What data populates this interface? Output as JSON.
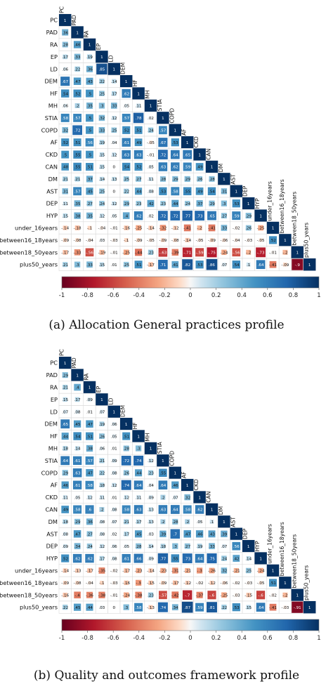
{
  "labels": [
    "PC",
    "PAD",
    "RA",
    "EP",
    "LD",
    "DEM",
    "HF",
    "MH",
    "STIA",
    "COPD",
    "AF",
    "CKD",
    "CAN",
    "DM",
    "AST",
    "DEP",
    "HYP",
    "under_16years",
    "between16_18years",
    "between18_50years",
    "plus50_years"
  ],
  "colorbar_ticks": [
    "-1",
    "-0.8",
    "-0.6",
    "-0.4",
    "-0.2",
    "0",
    "0.2",
    "0.4",
    "0.6",
    "0.8",
    "1"
  ],
  "captions": {
    "a": "(a) Allocation General practices profile",
    "b": "(b) Quality and outcomes framework profile"
  },
  "colors": {
    "negative": "#67001f",
    "neutral": "#f7f7f7",
    "positive": "#053061",
    "grid": "#d9d9d9"
  },
  "chart_data": [
    {
      "type": "heatmap",
      "title": "",
      "values": [
        [
          0.36
        ],
        [
          0.28,
          0.46
        ],
        [
          0.17,
          0.33,
          0.19
        ],
        [
          0.06,
          0.22,
          0.36,
          0.85
        ],
        [
          0.67,
          0.47,
          0.43,
          0.22,
          0.14
        ],
        [
          0.54,
          0.52,
          0.5,
          0.25,
          0.17,
          0.62
        ],
        [
          0.06,
          0.2,
          0.35,
          0.3,
          0.33,
          0.05,
          0.11
        ],
        [
          0.58,
          0.57,
          0.5,
          0.32,
          0.12,
          0.57,
          0.78,
          0.02
        ],
        [
          0.32,
          0.72,
          0.5,
          0.33,
          0.25,
          0.52,
          0.51,
          0.24,
          0.57
        ],
        [
          0.52,
          0.51,
          0.56,
          0.19,
          0.04,
          0.61,
          0.49,
          -0.05,
          0.67,
          0.53
        ],
        [
          0.5,
          0.55,
          0.5,
          0.15,
          0.12,
          0.63,
          0.63,
          -0.01,
          0.72,
          0.64,
          0.65
        ],
        [
          0.48,
          0.55,
          0.51,
          0.15,
          0,
          0.54,
          0.52,
          0.05,
          0.63,
          0.62,
          0.59,
          0.49
        ],
        [
          0.21,
          0.21,
          0.37,
          0.14,
          0.13,
          0.25,
          0.27,
          0.11,
          0.28,
          0.29,
          0.29,
          0.26,
          0.28
        ],
        [
          0.31,
          0.57,
          0.45,
          0.25,
          0,
          0.22,
          0.44,
          0.08,
          0.53,
          0.58,
          0.55,
          0.49,
          0.54,
          0.31
        ],
        [
          0.11,
          0.35,
          0.27,
          0.24,
          0.12,
          0.29,
          0.23,
          0.42,
          0.23,
          0.44,
          0.24,
          0.37,
          0.29,
          0.3,
          0.53
        ],
        [
          0.15,
          0.38,
          0.35,
          0.12,
          0.05,
          0.4,
          0.62,
          0.02,
          0.72,
          0.72,
          0.77,
          0.73,
          0.65,
          0.27,
          0.59,
          0.29
        ],
        [
          -0.14,
          -0.18,
          -0.1,
          -0.04,
          -0.01,
          -0.16,
          -0.25,
          -0.14,
          -0.32,
          -0.12,
          -0.41,
          -0.2,
          -0.41,
          0.33,
          -0.02,
          0.26,
          -0.25
        ],
        [
          -0.09,
          -0.08,
          -0.04,
          0.03,
          -0.03,
          -0.1,
          -0.09,
          -0.05,
          -0.09,
          -0.08,
          -0.14,
          -0.05,
          -0.09,
          -0.06,
          -0.04,
          -0.03,
          -0.05,
          0.52
        ],
        [
          -0.17,
          -0.33,
          -0.56,
          -0.19,
          -0.01,
          -0.25,
          -0.44,
          0.23,
          -0.63,
          -0.39,
          -0.71,
          -0.59,
          -0.75,
          -0.24,
          -0.56,
          -0.2,
          -0.73,
          -0.01,
          -0.2
        ],
        [
          0.21,
          0.3,
          0.33,
          0.15,
          0.01,
          0.25,
          0.51,
          -0.17,
          0.71,
          0.41,
          0.82,
          0.53,
          0.86,
          0.07,
          0.54,
          0.1,
          0.64,
          -0.41,
          -0.09,
          -0.9
        ]
      ],
      "colorbar": {
        "min": -1,
        "max": 1
      }
    },
    {
      "type": "heatmap",
      "title": "",
      "values": [
        [
          0.29
        ],
        [
          0.21,
          0.4
        ],
        [
          0.15,
          0.17,
          0.09
        ],
        [
          0.07,
          0.08,
          0.01,
          0.07
        ],
        [
          0.65,
          0.45,
          0.47,
          0.19,
          0.06
        ],
        [
          0.44,
          0.54,
          0.51,
          0.26,
          0.05,
          0.51
        ],
        [
          0.18,
          0.14,
          0.38,
          0.06,
          0.01,
          0.28,
          0.3
        ],
        [
          0.64,
          0.61,
          0.57,
          0.21,
          0.09,
          0.72,
          0.74,
          0.12
        ],
        [
          0.29,
          0.63,
          0.47,
          0.22,
          0.08,
          0.26,
          0.44,
          0.23,
          0.55
        ],
        [
          0.46,
          0.61,
          0.58,
          0.18,
          0.12,
          0.74,
          0.64,
          0.04,
          0.64,
          0.46
        ],
        [
          0.11,
          0.05,
          0.12,
          0.11,
          0.01,
          0.12,
          0.11,
          0.09,
          0.2,
          0.07,
          0.32
        ],
        [
          0.49,
          0.58,
          0.6,
          0.2,
          0.08,
          0.58,
          0.63,
          0.13,
          0.63,
          0.64,
          0.58,
          0.62
        ],
        [
          0.18,
          0.29,
          0.36,
          0.08,
          0.07,
          0.21,
          0.17,
          0.13,
          0.2,
          0.28,
          0.2,
          0.05,
          0.1
        ],
        [
          0.08,
          0.47,
          0.27,
          0.08,
          0.02,
          0.17,
          0.45,
          0.03,
          0.39,
          0.7,
          0.47,
          0.46,
          0.43,
          0.39
        ],
        [
          0.09,
          0.34,
          0.24,
          0.12,
          0.06,
          0.05,
          0.28,
          0.14,
          0.18,
          0.3,
          0.27,
          0.19,
          0.33,
          0.07,
          0.56
        ],
        [
          0.52,
          0.62,
          0.62,
          0.17,
          0.08,
          0.61,
          0.66,
          0.09,
          0.77,
          0.55,
          0.73,
          0.64,
          0.75,
          0.24,
          0.42,
          0.14
        ],
        [
          -0.14,
          -0.13,
          -0.17,
          -0.35,
          -0.02,
          -0.17,
          -0.23,
          -0.14,
          -0.23,
          -0.31,
          -0.21,
          -0.3,
          -0.26,
          0.32,
          -0.21,
          0.25,
          -0.24
        ],
        [
          -0.09,
          -0.08,
          -0.04,
          -0.1,
          -0.03,
          -0.16,
          -0.3,
          -0.15,
          -0.09,
          -0.17,
          -0.12,
          -0.02,
          -0.12,
          -0.06,
          -0.02,
          -0.03,
          -0.05,
          0.51
        ],
        [
          -0.16,
          -0.4,
          -0.36,
          -0.38,
          -0.01,
          -0.24,
          -0.38,
          0.23,
          -0.57,
          -0.42,
          -0.7,
          -0.37,
          -0.6,
          -0.25,
          -0.03,
          -0.15,
          -0.6,
          -0.02,
          -0.2
        ],
        [
          0.22,
          0.45,
          0.44,
          0.03,
          0,
          0.3,
          0.58,
          -0.13,
          0.74,
          0.34,
          0.87,
          0.59,
          0.81,
          0.22,
          0.53,
          0.15,
          0.64,
          -0.41,
          -0.03,
          -0.91
        ]
      ],
      "colorbar": {
        "min": -1,
        "max": 1
      }
    }
  ]
}
